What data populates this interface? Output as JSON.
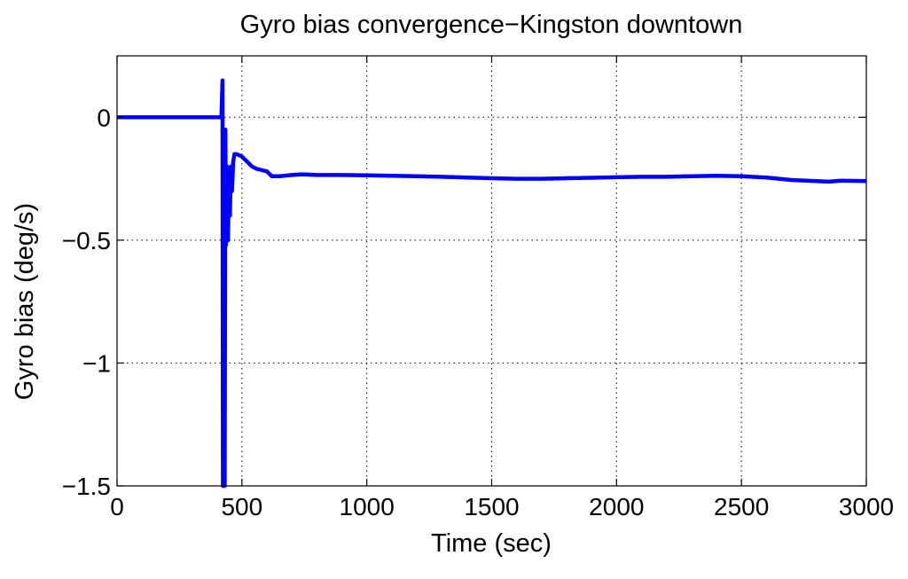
{
  "chart_data": {
    "type": "line",
    "title": "Gyro bias convergence−Kingston downtown",
    "xlabel": "Time (sec)",
    "ylabel": "Gyro bias (deg/s)",
    "xlim": [
      0,
      3000
    ],
    "ylim": [
      -1.5,
      0.25
    ],
    "xticks": [
      0,
      500,
      1000,
      1500,
      2000,
      2500,
      3000
    ],
    "xtick_labels": [
      "0",
      "500",
      "1000",
      "1500",
      "2000",
      "2500",
      "3000"
    ],
    "yticks": [
      0,
      -0.5,
      -1,
      -1.5
    ],
    "ytick_labels": [
      "0",
      "−0.5",
      "−1",
      "−1.5"
    ],
    "grid": "dotted",
    "legend": "none",
    "series": [
      {
        "color": "#0000ff",
        "x": [
          0,
          418,
          422,
          424,
          428,
          431,
          434,
          436,
          440,
          444,
          448,
          452,
          456,
          460,
          465,
          470,
          480,
          500,
          520,
          540,
          560,
          600,
          620,
          650,
          700,
          740,
          800,
          900,
          1000,
          1100,
          1200,
          1300,
          1400,
          1500,
          1600,
          1700,
          1800,
          1900,
          2000,
          2100,
          2200,
          2300,
          2400,
          2500,
          2600,
          2700,
          2800,
          2850,
          2900,
          3000
        ],
        "y": [
          0,
          0,
          0.15,
          -1.5,
          -0.3,
          -1.5,
          -0.05,
          -0.52,
          -0.2,
          -0.5,
          -0.25,
          -0.4,
          -0.2,
          -0.3,
          -0.18,
          -0.15,
          -0.15,
          -0.16,
          -0.18,
          -0.2,
          -0.21,
          -0.22,
          -0.24,
          -0.24,
          -0.235,
          -0.232,
          -0.235,
          -0.235,
          -0.236,
          -0.238,
          -0.24,
          -0.242,
          -0.245,
          -0.248,
          -0.25,
          -0.25,
          -0.248,
          -0.246,
          -0.244,
          -0.242,
          -0.242,
          -0.24,
          -0.238,
          -0.24,
          -0.245,
          -0.255,
          -0.26,
          -0.262,
          -0.258,
          -0.26
        ]
      }
    ]
  }
}
